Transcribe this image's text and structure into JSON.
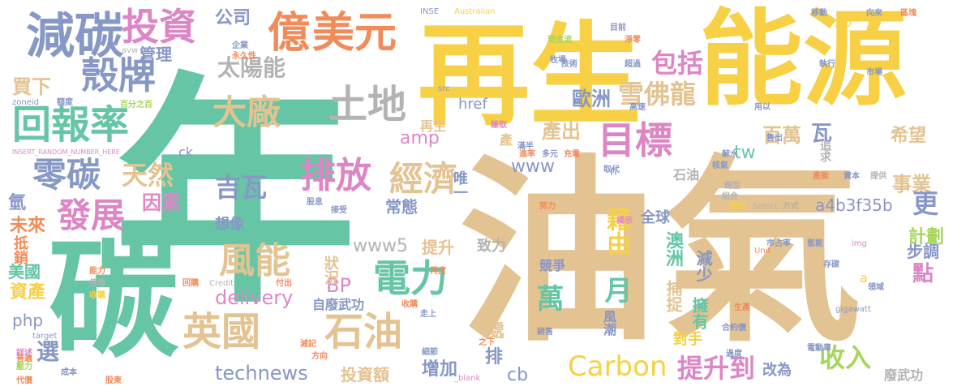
{
  "palette": {
    "yellow": "#f7d046",
    "teal": "#66c5a4",
    "tan": "#e4c392",
    "blue": "#8797c6",
    "orange": "#f28b5a",
    "pink": "#dd86c6",
    "green": "#a6d65a",
    "gray": "#b3b3b3"
  },
  "words": {
    "nian": "年",
    "you_qi": "油氣",
    "tan": "碳",
    "zai_sheng": "再生",
    "neng_yuan": "能源",
    "jian_tan": "減碳",
    "tou_zi": "投資",
    "yi": "億",
    "mei_yuan": "美元",
    "ke_pai": "殼牌",
    "hui_bao_lu": "回報率",
    "ling_tan": "零碳",
    "fa_zhan": "發展",
    "tu_di": "土地",
    "da_chang": "大廠",
    "tai_yang_neng": "太陽能",
    "mu_biao": "目標",
    "pai_fang": "排放",
    "jing_ji": "經濟",
    "ying_guo": "英國",
    "shi_you": "石油",
    "dian_li": "電力",
    "feng_neng": "風能",
    "xue_fo_long": "雪佛龍",
    "bao_kuo": "包括",
    "ou_zhou": "歐洲",
    "bai_wan": "百萬",
    "wa": "瓦",
    "gong_si": "公司",
    "guan_li": "管理",
    "mai_xia": "買下",
    "tian_ran": "天然",
    "yin_su": "因素",
    "ji_wa": "吉瓦",
    "chan_chu": "產出",
    "xi_wang": "希望",
    "shi_ye": "事業",
    "geng": "更",
    "ji_hua": "計劃",
    "dian": "點",
    "carbon": "Carbon",
    "technews": "technews",
    "www5": "www5",
    "www": "www",
    "amp": "amp",
    "tw": "tw",
    "href": "href",
    "delivery": "delivery",
    "php": "php",
    "bp": "BP",
    "a4b3f35b": "a4b3f35b",
    "cb": "cb",
    "ck": "ck",
    "n": "n",
    "a": "a",
    "wan": "萬",
    "yue": "月",
    "ji_you": "藉由",
    "ti_sheng_dao": "提升到",
    "shou_ru": "收入",
    "ti_sheng": "提升",
    "ao_zhou": "澳洲",
    "jian_shao": "減少",
    "bu_zhuo": "捕捉",
    "yong_you": "擁有",
    "dui_shou": "對手",
    "zhuang_kuang": "狀況",
    "zi_fei_wu_gong": "自廢武功",
    "feng_chao": "風潮",
    "jing_zheng": "競爭",
    "chu": "處",
    "tou_zi_e": "投資額",
    "zeng_jia": "增加",
    "pai": "排",
    "xuan": "選",
    "mei_guo": "美國",
    "zi_chan": "資產",
    "di_xiao": "抵銷",
    "wei_lai": "未來",
    "qing": "氫",
    "xiang_xiang": "想像",
    "chang_tai": "常態",
    "wei_yi": "唯一",
    "zhi_li": "致力",
    "quan_qiu": "全球",
    "bu_diao": "步調",
    "gai_wei": "改為",
    "fei_wu_gong": "廢武功",
    "zhui_qiu": "追求",
    "shi_you_s": "石油",
    "zai_sheng_s": "再生",
    "chan": "產",
    "insert": "INSERT_RANDOM_NUMBER_HERE",
    "zoneid": "zoneid",
    "australian": "Australian",
    "inse": "INSE",
    "select": "Select",
    "gigawatt": "gigawatt",
    "img": "img",
    "target": "target",
    "src": "src",
    "credit": "Credit",
    "unit": "Unit",
    "blank": "_blank",
    "avw": "avw",
    "fang_shi": "方式",
    "zi_ben": "資本",
    "ti_gong": "提供",
    "chan_neng": "產能",
    "qing_qi_s": "氫能",
    "shi_ben_lu": "市占率",
    "dian_dong_che": "電動車",
    "he_yue_jia": "合約價",
    "sheng_chan": "生產",
    "guo_du": "過度",
    "zhi_jie": "細節",
    "zhi_xia": "之下",
    "fang_xiang": "方向",
    "jian_ji": "減記",
    "xiao_shou": "銷售",
    "shou_gou": "收購",
    "zou_shang": "走上",
    "zuan_qu": "賺取",
    "zi_du": "額度",
    "ai_yi": "百分之百",
    "yong_jiu": "永久性",
    "jiu_gai": "企業",
    "qi_ye": "牧場",
    "shi_chang": "市場",
    "xiang_lai": "向來",
    "jue_xin": "決心",
    "ji_shu": "技術",
    "chao_yue": "超過",
    "zhi_xing": "執行",
    "gao_su": "高速",
    "yong_yi": "用以",
    "man_ban": "滿半",
    "jin_chan": "進率",
    "duo_yuan": "多元",
    "chong_dian": "充電",
    "qu_dai": "取代",
    "he_yang": "核氣",
    "jie_shui": "解水",
    "gao_chu": "售出",
    "zhuan_xing": "轉型",
    "zu_he": "組合",
    "zheng_he": "整合",
    "gu_xi": "股息",
    "jie_shou": "接受",
    "nu_li": "努力",
    "jie_xian": "揭示",
    "zai_du": "再度",
    "fu_chu": "付出",
    "neng_li": "能力",
    "bei_zeng": "倍增",
    "shou_shi": "收購",
    "cun_tan": "存碳",
    "ling_yu": "領域",
    "hui_gu": "回購",
    "pu_xian": "普遍",
    "cheng_ben": "成本",
    "zhi_du": "代價",
    "jie_yu": "詳述",
    "zhuan_li": "壓力",
    "gao_xiao": "股東",
    "mu_qian": "目前",
    "jing_zhi": "淨零",
    "wei_lai_s": "現金流",
    "yi_dong": "移動",
    "qu_kuai": "區塊"
  }
}
